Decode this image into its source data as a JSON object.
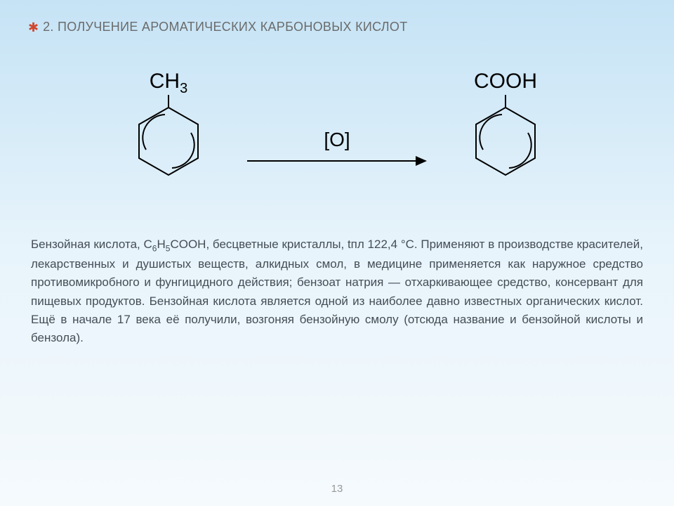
{
  "title": "2. Получение ароматических карбоновых кислот",
  "reaction": {
    "reactant_label_html": "CH<sub>3</sub>",
    "product_label_html": "COOH",
    "arrow_label": "[O]",
    "ring_stroke": "#000000",
    "ring_stroke_width": 2,
    "arrow_stroke": "#000000",
    "arrow_stroke_width": 2,
    "arrow_length": 250
  },
  "body_html": "Бензойная кислота, <span class=\"formula-inline\">C<sub>6</sub>H<sub>5</sub>COOH</span>, бесцветные кристаллы, tпл 122,4 °C. Применяют в производстве красителей, лекарственных и душистых веществ, алкидных смол, в медицине применяется как наружное средство противомикробного и фунгицидного действия; бензоат натрия — отхаркивающее средство, консервант для пищевых продуктов. Бензойная кислота является одной из наиболее давно известных органических кислот. Ещё в начале 17 века её получили, возгоняя бензойную смолу (отсюда название и бензойной кислоты и бензола).",
  "page_number": "13",
  "colors": {
    "title_color": "#6b6b6b",
    "body_color": "#444d56",
    "star_color": "#d0462e",
    "bg_top": "#c5e3f5",
    "bg_bottom": "#f5fafd"
  },
  "fonts": {
    "title_size_pt": 14,
    "body_size_pt": 13,
    "formula_size_pt": 22
  }
}
